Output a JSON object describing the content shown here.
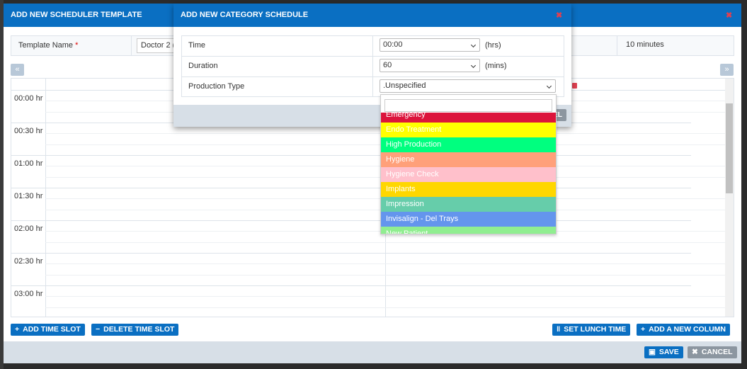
{
  "outer_modal": {
    "title": "ADD NEW SCHEDULER TEMPLATE"
  },
  "template": {
    "label": "Template Name",
    "required": "*",
    "name_value": "Doctor 2 (",
    "interval": "10 minutes"
  },
  "nav": {
    "prev": "«",
    "next": "»"
  },
  "times": [
    "00:00 hr",
    "00:30 hr",
    "01:00 hr",
    "01:30 hr",
    "02:00 hr",
    "02:30 hr",
    "03:00 hr"
  ],
  "buttons": {
    "add_time_slot": "ADD TIME SLOT",
    "delete_time_slot": "DELETE TIME SLOT",
    "set_lunch_time": "SET LUNCH TIME",
    "add_column": "ADD A NEW COLUMN",
    "save": "SAVE",
    "cancel": "CANCEL"
  },
  "dialog": {
    "title": "ADD NEW CATEGORY SCHEDULE",
    "rows": [
      {
        "label": "Time",
        "value": "00:00",
        "unit": "(hrs)"
      },
      {
        "label": "Duration",
        "value": "60",
        "unit": "(mins)"
      },
      {
        "label": "Production Type",
        "value": ".Unspecified"
      }
    ],
    "footer_button": "EL"
  },
  "dropdown": {
    "options": [
      {
        "label": "Emergency",
        "color": "#dc143c"
      },
      {
        "label": "Endo Treatment",
        "color": "#ffff00"
      },
      {
        "label": "High Production",
        "color": "#00ff7f"
      },
      {
        "label": "Hygiene",
        "color": "#ffa07a"
      },
      {
        "label": "Hygiene Check",
        "color": "#ffc0cb"
      },
      {
        "label": "Implants",
        "color": "#ffd700"
      },
      {
        "label": "Impression",
        "color": "#66cdaa"
      },
      {
        "label": "Invisalign - Del Trays",
        "color": "#6495ed"
      },
      {
        "label": "New Patient",
        "color": "#90ee90"
      }
    ]
  }
}
